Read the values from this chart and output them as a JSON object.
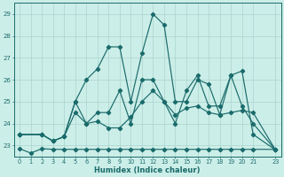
{
  "xlabel": "Humidex (Indice chaleur)",
  "bg_color": "#cceee8",
  "line_color": "#1a6b6b",
  "grid_color": "#aad4ce",
  "xlim": [
    -0.5,
    23.5
  ],
  "ylim": [
    22.5,
    29.5
  ],
  "yticks": [
    23,
    24,
    25,
    26,
    27,
    28,
    29
  ],
  "xtick_labels": [
    "0",
    "1",
    "2",
    "3",
    "4",
    "5",
    "6",
    "7",
    "8",
    "9",
    "10",
    "11",
    "12",
    "13",
    "14",
    "15",
    "16",
    "17",
    "18",
    "19",
    "20",
    "21",
    "23"
  ],
  "xtick_pos": [
    0,
    1,
    2,
    3,
    4,
    5,
    6,
    7,
    8,
    9,
    10,
    11,
    12,
    13,
    14,
    15,
    16,
    17,
    18,
    19,
    20,
    21,
    23
  ],
  "series1_x": [
    0,
    1,
    2,
    3,
    4,
    5,
    6,
    7,
    8,
    9,
    10,
    11,
    12,
    13,
    14,
    15,
    16,
    17,
    18,
    19,
    20,
    21,
    23
  ],
  "series1_y": [
    22.85,
    22.65,
    22.85,
    22.82,
    22.82,
    22.82,
    22.82,
    22.82,
    22.82,
    22.82,
    22.82,
    22.82,
    22.82,
    22.82,
    22.82,
    22.82,
    22.82,
    22.82,
    22.82,
    22.82,
    22.82,
    22.82,
    22.82
  ],
  "series2_x": [
    0,
    2,
    3,
    4,
    5,
    6,
    7,
    8,
    9,
    10,
    11,
    12,
    13,
    14,
    15,
    16,
    17,
    18,
    19,
    20,
    21,
    23
  ],
  "series2_y": [
    23.5,
    23.5,
    23.2,
    23.4,
    25.0,
    24.0,
    24.1,
    23.8,
    23.8,
    24.3,
    25.0,
    25.5,
    25.0,
    24.4,
    24.7,
    24.8,
    24.5,
    24.4,
    24.5,
    24.6,
    24.5,
    22.8
  ],
  "series3_x": [
    0,
    2,
    3,
    4,
    5,
    6,
    7,
    8,
    9,
    10,
    11,
    12,
    13,
    14,
    15,
    16,
    17,
    18,
    19,
    20,
    21,
    23
  ],
  "series3_y": [
    23.5,
    23.5,
    23.2,
    23.4,
    25.0,
    26.0,
    26.5,
    27.5,
    27.5,
    25.0,
    27.2,
    29.0,
    28.5,
    25.0,
    25.0,
    26.0,
    25.8,
    24.4,
    26.2,
    26.4,
    23.5,
    22.8
  ],
  "series4_x": [
    0,
    2,
    3,
    4,
    5,
    6,
    7,
    8,
    9,
    10,
    11,
    12,
    13,
    14,
    15,
    16,
    17,
    18,
    19,
    20,
    21,
    23
  ],
  "series4_y": [
    23.5,
    23.5,
    23.2,
    23.4,
    24.5,
    24.0,
    24.5,
    24.5,
    25.5,
    24.0,
    26.0,
    26.0,
    25.0,
    24.0,
    25.5,
    26.2,
    24.8,
    24.8,
    26.2,
    24.8,
    24.0,
    22.8
  ]
}
